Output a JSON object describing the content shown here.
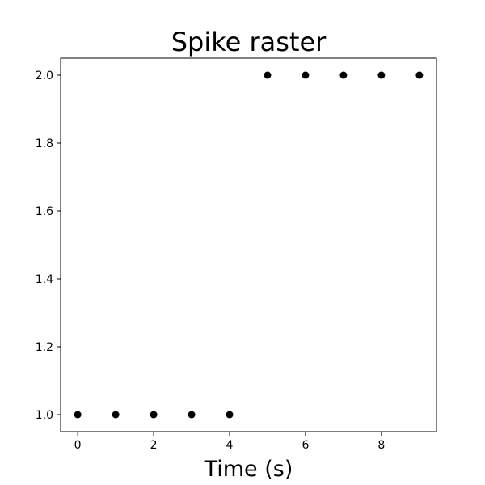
{
  "chart_data": {
    "type": "scatter",
    "title": "Spike raster",
    "xlabel": "Time (s)",
    "ylabel": "",
    "xlim": [
      -0.45,
      9.45
    ],
    "ylim": [
      0.95,
      2.05
    ],
    "x_ticks": [
      0,
      2,
      4,
      6,
      8
    ],
    "x_tick_labels": [
      "0",
      "2",
      "4",
      "6",
      "8"
    ],
    "y_ticks": [
      1.0,
      1.2,
      1.4,
      1.6,
      1.8,
      2.0
    ],
    "y_tick_labels": [
      "1.0",
      "1.2",
      "1.4",
      "1.6",
      "1.8",
      "2.0"
    ],
    "grid": false,
    "legend": false,
    "marker_color": "#000000",
    "points": [
      {
        "x": 0,
        "y": 1.0
      },
      {
        "x": 1,
        "y": 1.0
      },
      {
        "x": 2,
        "y": 1.0
      },
      {
        "x": 3,
        "y": 1.0
      },
      {
        "x": 4,
        "y": 1.0
      },
      {
        "x": 5,
        "y": 2.0
      },
      {
        "x": 6,
        "y": 2.0
      },
      {
        "x": 7,
        "y": 2.0
      },
      {
        "x": 8,
        "y": 2.0
      },
      {
        "x": 9,
        "y": 2.0
      }
    ]
  }
}
